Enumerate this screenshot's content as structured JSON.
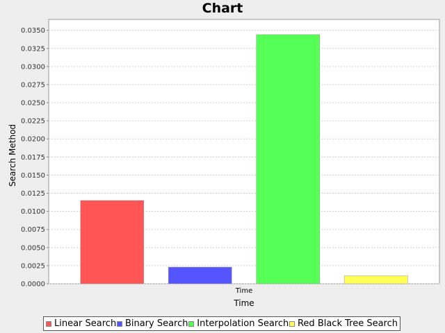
{
  "chart_data": {
    "type": "bar",
    "title": "Chart",
    "xlabel": "Time",
    "ylabel": "Search Method",
    "categories": [
      "Time"
    ],
    "series": [
      {
        "name": "Linear Search",
        "values": [
          0.0115
        ],
        "color": "#ff5555"
      },
      {
        "name": "Binary Search",
        "values": [
          0.0023
        ],
        "color": "#5555ff"
      },
      {
        "name": "Interpolation Search",
        "values": [
          0.0344
        ],
        "color": "#55ff55"
      },
      {
        "name": "Red Black Tree Search",
        "values": [
          0.0011
        ],
        "color": "#ffff55"
      }
    ],
    "ylim": [
      0,
      0.0365
    ],
    "yticks": [
      "0.0000",
      "0.0025",
      "0.0050",
      "0.0075",
      "0.0100",
      "0.0125",
      "0.0150",
      "0.0175",
      "0.0200",
      "0.0225",
      "0.0250",
      "0.0275",
      "0.0300",
      "0.0325",
      "0.0350"
    ],
    "grid": true,
    "legend_position": "bottom"
  }
}
